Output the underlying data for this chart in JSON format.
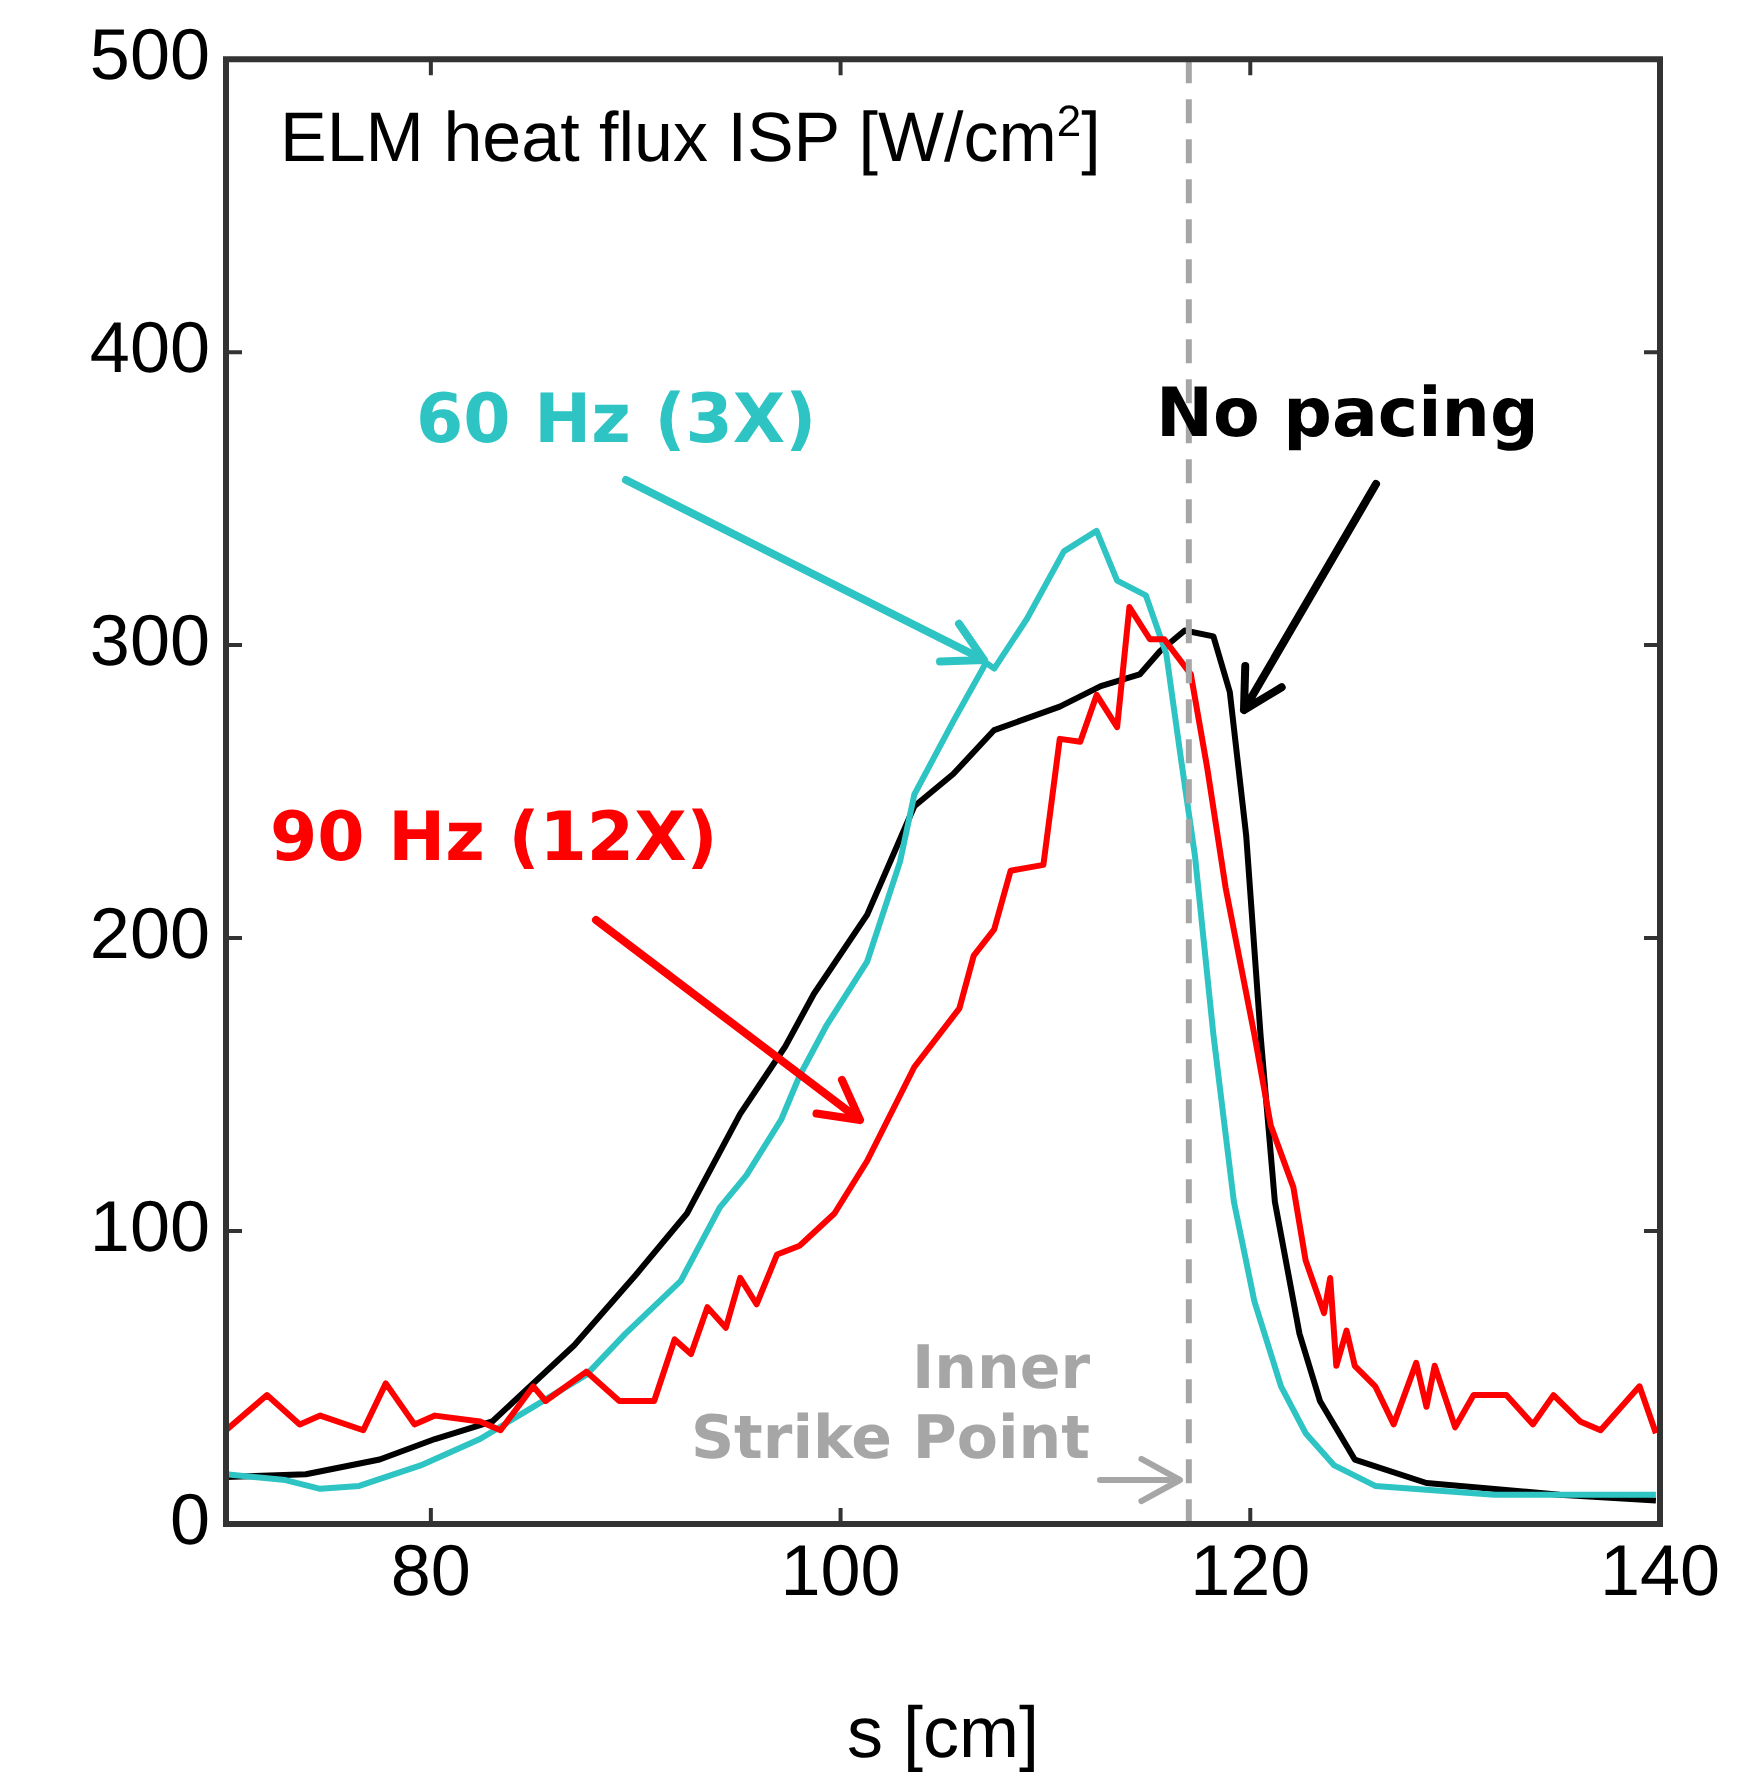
{
  "chart_data": {
    "type": "line",
    "title": "ELM heat flux ISP [W/cm$^{2}$]",
    "xlabel": "s [cm]",
    "xlim": [
      70,
      140
    ],
    "xticks": [
      80,
      100,
      120,
      140
    ],
    "ylim": [
      0,
      500
    ],
    "yticks": [
      0,
      100,
      200,
      300,
      400,
      500
    ],
    "grid": false,
    "legend": false,
    "marker": "none",
    "line_style": "solid",
    "ref_lines": [
      {
        "axis": "x",
        "value": 117,
        "label": "Inner Strike Point",
        "color": "#a6a6a6",
        "line_style": "dashed"
      }
    ],
    "series": [
      {
        "name": "90 Hz (12X)",
        "color": "#ff0000",
        "x": [
          70,
          72,
          73.6,
          74.6,
          76.7,
          77.8,
          79.2,
          80.2,
          82.4,
          83.4,
          85,
          85.6,
          87.6,
          89.2,
          90.9,
          91.9,
          92.7,
          93.5,
          94.4,
          95.1,
          95.9,
          96.9,
          98,
          99.7,
          101.3,
          103.6,
          105.8,
          106.5,
          107.5,
          108.3,
          109.9,
          110.7,
          111.7,
          112.5,
          113.5,
          114.1,
          115.1,
          115.8,
          117.1,
          117.9,
          118.8,
          120.2,
          121,
          122.1,
          122.7,
          123.6,
          123.9,
          124.2,
          124.7,
          125.1,
          126.1,
          127,
          128.1,
          128.6,
          129,
          130,
          130.9,
          132.5,
          133.8,
          134.8,
          136.1,
          137.1,
          139,
          139.8
        ],
        "values": [
          32,
          44,
          34,
          37,
          32,
          48,
          34,
          37,
          35,
          32,
          47,
          42,
          52,
          42,
          42,
          63,
          58,
          74,
          67,
          84,
          75,
          92,
          95,
          106,
          124,
          156,
          176,
          194,
          203,
          223,
          225,
          268,
          267,
          283,
          272,
          313,
          302,
          302,
          290,
          258,
          217,
          167,
          136,
          115,
          90,
          72,
          84,
          54,
          66,
          54,
          47,
          34,
          55,
          40,
          54,
          33,
          44,
          44,
          34,
          44,
          35,
          32,
          47,
          31
        ]
      },
      {
        "name": "60 Hz (3X)",
        "color": "#2ec4c4",
        "x": [
          70,
          72.9,
          74.6,
          76.5,
          79.5,
          82.4,
          85,
          87.6,
          89.5,
          92.2,
          94.1,
          95.4,
          97.1,
          98,
          99.3,
          101.3,
          102.9,
          103.6,
          105.5,
          107.1,
          107.5,
          109.1,
          110.9,
          112.5,
          113.5,
          114.9,
          115.9,
          116.6,
          117.3,
          118.2,
          119.2,
          120.2,
          121.5,
          122.7,
          124.1,
          126.1,
          131.9,
          139.8
        ],
        "values": [
          17,
          15,
          12,
          13,
          20,
          29,
          40,
          51,
          65,
          83,
          108,
          119,
          138,
          153,
          170,
          192,
          226,
          249,
          274,
          294,
          292,
          309,
          332,
          339,
          322,
          317,
          297,
          262,
          228,
          167,
          110,
          76,
          47,
          31,
          20,
          13,
          10,
          10
        ]
      },
      {
        "name": "No pacing",
        "color": "#000000",
        "x": [
          70,
          73.9,
          77.5,
          80.2,
          83,
          87,
          90,
          92.5,
          95.1,
          97.3,
          98.7,
          101.3,
          103.6,
          105.5,
          107.5,
          110.7,
          112.7,
          114.6,
          115.6,
          116.8,
          118.2,
          119,
          119.8,
          120.5,
          121.2,
          122.4,
          123.4,
          125.1,
          128.6,
          135.1,
          139.8
        ],
        "values": [
          16,
          17,
          22,
          29,
          35,
          61,
          85,
          106,
          140,
          163,
          181,
          208,
          245,
          256,
          271,
          279,
          286,
          290,
          298,
          305,
          303,
          284,
          235,
          167,
          110,
          65,
          42,
          22,
          14,
          10,
          8
        ]
      }
    ]
  }
}
